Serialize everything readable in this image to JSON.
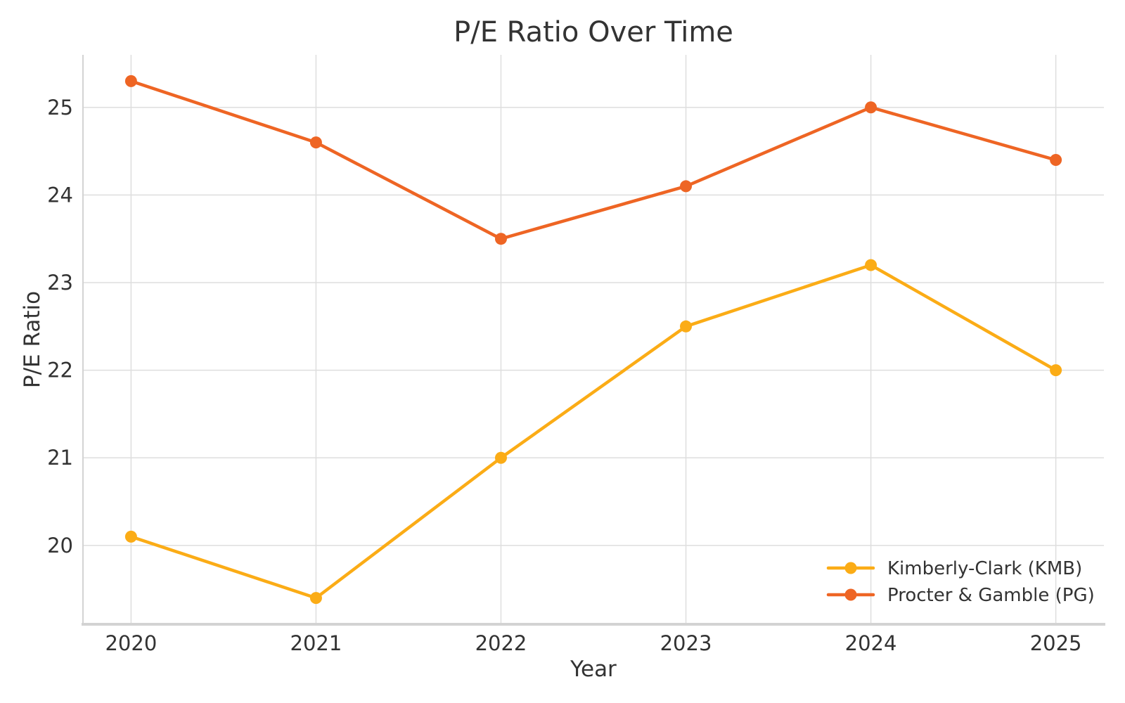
{
  "chart_data": {
    "type": "line",
    "title": "P/E Ratio Over Time",
    "xlabel": "Year",
    "ylabel": "P/E Ratio",
    "x": [
      2020,
      2021,
      2022,
      2023,
      2024,
      2025
    ],
    "series": [
      {
        "name": "Kimberly-Clark (KMB)",
        "color": "#FBAC16",
        "values": [
          20.1,
          19.4,
          21.0,
          22.5,
          23.2,
          22.0
        ]
      },
      {
        "name": "Procter & Gamble (PG)",
        "color": "#EE6524",
        "values": [
          25.3,
          24.6,
          23.5,
          24.1,
          25.0,
          24.4
        ]
      }
    ],
    "xticks": [
      "2020",
      "2021",
      "2022",
      "2023",
      "2024",
      "2025"
    ],
    "xtick_values": [
      2020,
      2021,
      2022,
      2023,
      2024,
      2025
    ],
    "yticks": [
      "20",
      "21",
      "22",
      "23",
      "24",
      "25"
    ],
    "ytick_values": [
      20,
      21,
      22,
      23,
      24,
      25
    ],
    "xlim": [
      2019.74,
      2025.26
    ],
    "ylim": [
      19.1,
      25.6
    ],
    "grid": true,
    "legend": {
      "position": "lower-right",
      "frame": false
    },
    "style": {
      "grid_color": "#DEDEDE",
      "spine_color": "#D3D3D3",
      "text_color": "#333333",
      "background": "#FFFFFF"
    }
  }
}
